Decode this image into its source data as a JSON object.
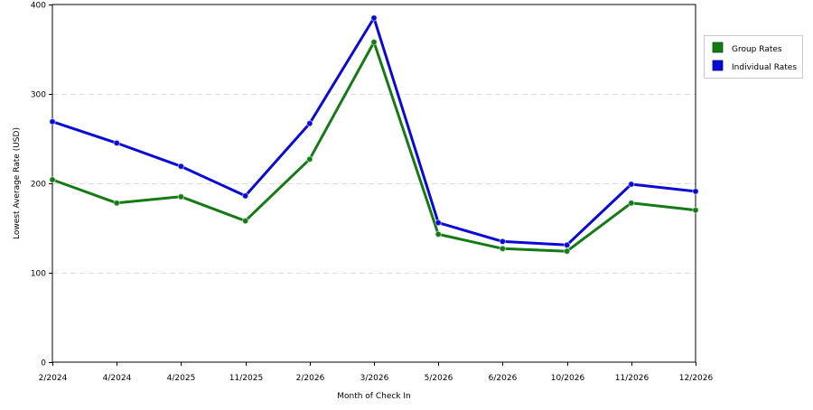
{
  "chart_data": {
    "type": "line",
    "title": "",
    "xlabel": "Month of Check In",
    "ylabel": "Lowest Average Rate (USD)",
    "categories": [
      "2/2024",
      "4/2024",
      "4/2025",
      "11/2025",
      "2/2026",
      "3/2026",
      "5/2026",
      "6/2026",
      "10/2026",
      "11/2026",
      "12/2026"
    ],
    "ylim": [
      0,
      400
    ],
    "yticks": [
      0,
      100,
      200,
      300,
      400
    ],
    "ytick_labels": [
      "0",
      "100",
      "200",
      "300",
      "400"
    ],
    "grid": "horizontal dashed",
    "legend_position": "right",
    "series": [
      {
        "name": "Group Rates",
        "color": "#157a15",
        "values": [
          204,
          178,
          185,
          158,
          227,
          358,
          143,
          127,
          124,
          178,
          170
        ]
      },
      {
        "name": "Individual Rates",
        "color": "#0a0ad2",
        "values": [
          269,
          245,
          219,
          186,
          267,
          385,
          156,
          135,
          131,
          199,
          191
        ]
      }
    ]
  }
}
